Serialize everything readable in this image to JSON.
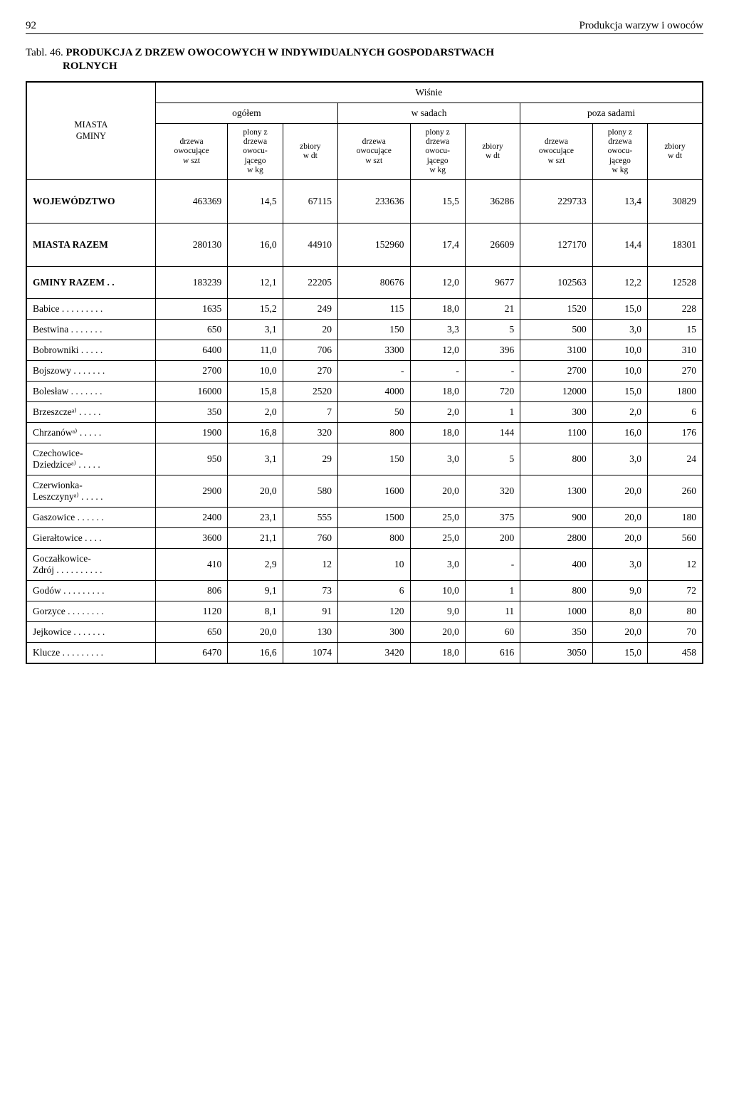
{
  "page": {
    "number": "92",
    "running_title": "Produkcja warzyw i owoców",
    "tabl_prefix": "Tabl. 46.",
    "title_line1": "PRODUKCJA Z DRZEW OWOCOWYCH W INDYWIDUALNYCH GOSPODARSTWACH",
    "title_line2": "ROLNYCH"
  },
  "table": {
    "top_group": "Wiśnie",
    "sub_groups": [
      "ogółem",
      "w sadach",
      "poza sadami"
    ],
    "rowhead": "MIASTA\nGMINY",
    "col_heads": {
      "a": "drzewa\nowocujące\nw szt",
      "b": "plony z\ndrzewa\nowocu-\njącego\nw kg",
      "c": "zbiory\nw dt"
    },
    "rows": [
      {
        "name": "WOJEWÓDZTWO",
        "cls": "section-row tall",
        "v": [
          "463369",
          "14,5",
          "67115",
          "233636",
          "15,5",
          "36286",
          "229733",
          "13,4",
          "30829"
        ]
      },
      {
        "name": "MIASTA RAZEM",
        "cls": "section-row tall",
        "v": [
          "280130",
          "16,0",
          "44910",
          "152960",
          "17,4",
          "26609",
          "127170",
          "14,4",
          "18301"
        ]
      },
      {
        "name": "GMINY RAZEM . .",
        "cls": "section-row spacer-row",
        "v": [
          "183239",
          "12,1",
          "22205",
          "80676",
          "12,0",
          "9677",
          "102563",
          "12,2",
          "12528"
        ]
      },
      {
        "name": "Babice . . . . . . . . .",
        "v": [
          "1635",
          "15,2",
          "249",
          "115",
          "18,0",
          "21",
          "1520",
          "15,0",
          "228"
        ]
      },
      {
        "name": "Bestwina . . . . . . .",
        "v": [
          "650",
          "3,1",
          "20",
          "150",
          "3,3",
          "5",
          "500",
          "3,0",
          "15"
        ]
      },
      {
        "name": "Bobrowniki . . . . .",
        "v": [
          "6400",
          "11,0",
          "706",
          "3300",
          "12,0",
          "396",
          "3100",
          "10,0",
          "310"
        ]
      },
      {
        "name": "Bojszowy . . . . . . .",
        "v": [
          "2700",
          "10,0",
          "270",
          "-",
          "-",
          "-",
          "2700",
          "10,0",
          "270"
        ]
      },
      {
        "name": "Bolesław . . . . . . .",
        "v": [
          "16000",
          "15,8",
          "2520",
          "4000",
          "18,0",
          "720",
          "12000",
          "15,0",
          "1800"
        ]
      },
      {
        "name": "Brzeszczeᵃ⁾ . . . . .",
        "v": [
          "350",
          "2,0",
          "7",
          "50",
          "2,0",
          "1",
          "300",
          "2,0",
          "6"
        ]
      },
      {
        "name": "Chrzanówᵃ⁾ . . . . .",
        "v": [
          "1900",
          "16,8",
          "320",
          "800",
          "18,0",
          "144",
          "1100",
          "16,0",
          "176"
        ]
      },
      {
        "name": "Czechowice-\nDziedziceᵃ⁾ . . . . .",
        "v": [
          "950",
          "3,1",
          "29",
          "150",
          "3,0",
          "5",
          "800",
          "3,0",
          "24"
        ]
      },
      {
        "name": "Czerwionka-\nLeszczynyᵃ⁾ . . . . .",
        "v": [
          "2900",
          "20,0",
          "580",
          "1600",
          "20,0",
          "320",
          "1300",
          "20,0",
          "260"
        ]
      },
      {
        "name": "Gaszowice . . . . . .",
        "v": [
          "2400",
          "23,1",
          "555",
          "1500",
          "25,0",
          "375",
          "900",
          "20,0",
          "180"
        ]
      },
      {
        "name": "Gierałtowice . . . .",
        "v": [
          "3600",
          "21,1",
          "760",
          "800",
          "25,0",
          "200",
          "2800",
          "20,0",
          "560"
        ]
      },
      {
        "name": "Goczałkowice-\nZdrój . . . . . . . . . .",
        "v": [
          "410",
          "2,9",
          "12",
          "10",
          "3,0",
          "-",
          "400",
          "3,0",
          "12"
        ]
      },
      {
        "name": "Godów . . . . . . . . .",
        "v": [
          "806",
          "9,1",
          "73",
          "6",
          "10,0",
          "1",
          "800",
          "9,0",
          "72"
        ]
      },
      {
        "name": "Gorzyce . . . . . . . .",
        "v": [
          "1120",
          "8,1",
          "91",
          "120",
          "9,0",
          "11",
          "1000",
          "8,0",
          "80"
        ]
      },
      {
        "name": "Jejkowice . . . . . . .",
        "v": [
          "650",
          "20,0",
          "130",
          "300",
          "20,0",
          "60",
          "350",
          "20,0",
          "70"
        ]
      },
      {
        "name": "Klucze . . . . . . . . .",
        "v": [
          "6470",
          "16,6",
          "1074",
          "3420",
          "18,0",
          "616",
          "3050",
          "15,0",
          "458"
        ]
      }
    ]
  }
}
